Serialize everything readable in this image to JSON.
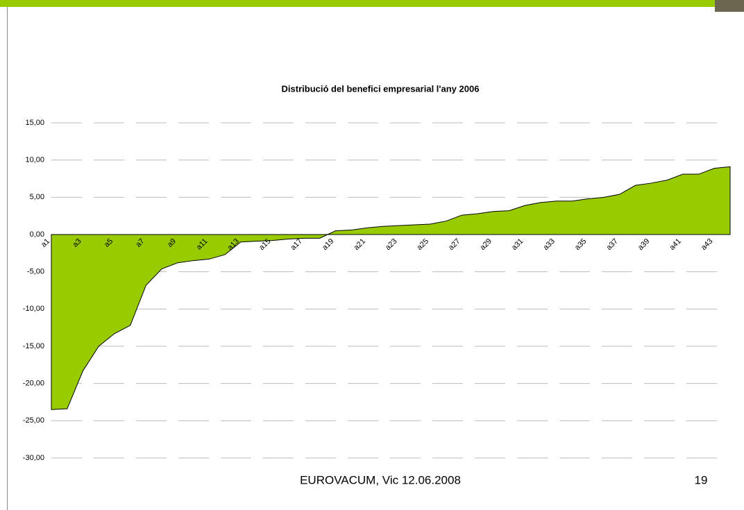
{
  "chart_data": {
    "type": "area",
    "title": "Distribució del benefici empresarial l'any 2006",
    "categories": [
      "a1",
      null,
      "a3",
      null,
      "a5",
      null,
      "a7",
      null,
      "a9",
      null,
      "a11",
      null,
      "a13",
      null,
      "a15",
      null,
      "a17",
      null,
      "a19",
      null,
      "a21",
      null,
      "a23",
      null,
      "a25",
      null,
      "a27",
      null,
      "a29",
      null,
      "a31",
      null,
      "a33",
      null,
      "a35",
      null,
      "a37",
      null,
      "a39",
      null,
      "a41",
      null,
      "a43",
      null
    ],
    "values": [
      -23.5,
      -23.4,
      -18.3,
      -15.0,
      -13.3,
      -12.2,
      -6.8,
      -4.6,
      -3.8,
      -3.5,
      -3.3,
      -2.7,
      -1.0,
      -0.9,
      -0.8,
      -0.6,
      -0.5,
      -0.5,
      0.5,
      0.6,
      0.9,
      1.1,
      1.2,
      1.3,
      1.4,
      1.8,
      2.6,
      2.8,
      3.1,
      3.2,
      3.9,
      4.3,
      4.5,
      4.5,
      4.8,
      5.0,
      5.4,
      6.6,
      6.9,
      7.3,
      8.1,
      8.1,
      8.9,
      9.1
    ],
    "color": "#99cc00",
    "ylim": [
      -30,
      15
    ],
    "yticks": [
      {
        "value": 15,
        "label": "15,00"
      },
      {
        "value": 10,
        "label": "10,00"
      },
      {
        "value": 5,
        "label": "5,00"
      },
      {
        "value": 0,
        "label": "0,00"
      },
      {
        "value": -5,
        "label": "-5,00"
      },
      {
        "value": -10,
        "label": "-10,00"
      },
      {
        "value": -15,
        "label": "-15,00"
      },
      {
        "value": -20,
        "label": "-20,00"
      },
      {
        "value": -25,
        "label": "-25,00"
      },
      {
        "value": -30,
        "label": "-30,00"
      }
    ],
    "grid": true
  },
  "footer": {
    "text": "EUROVACUM, Vic 12.06.2008",
    "page": "19"
  }
}
